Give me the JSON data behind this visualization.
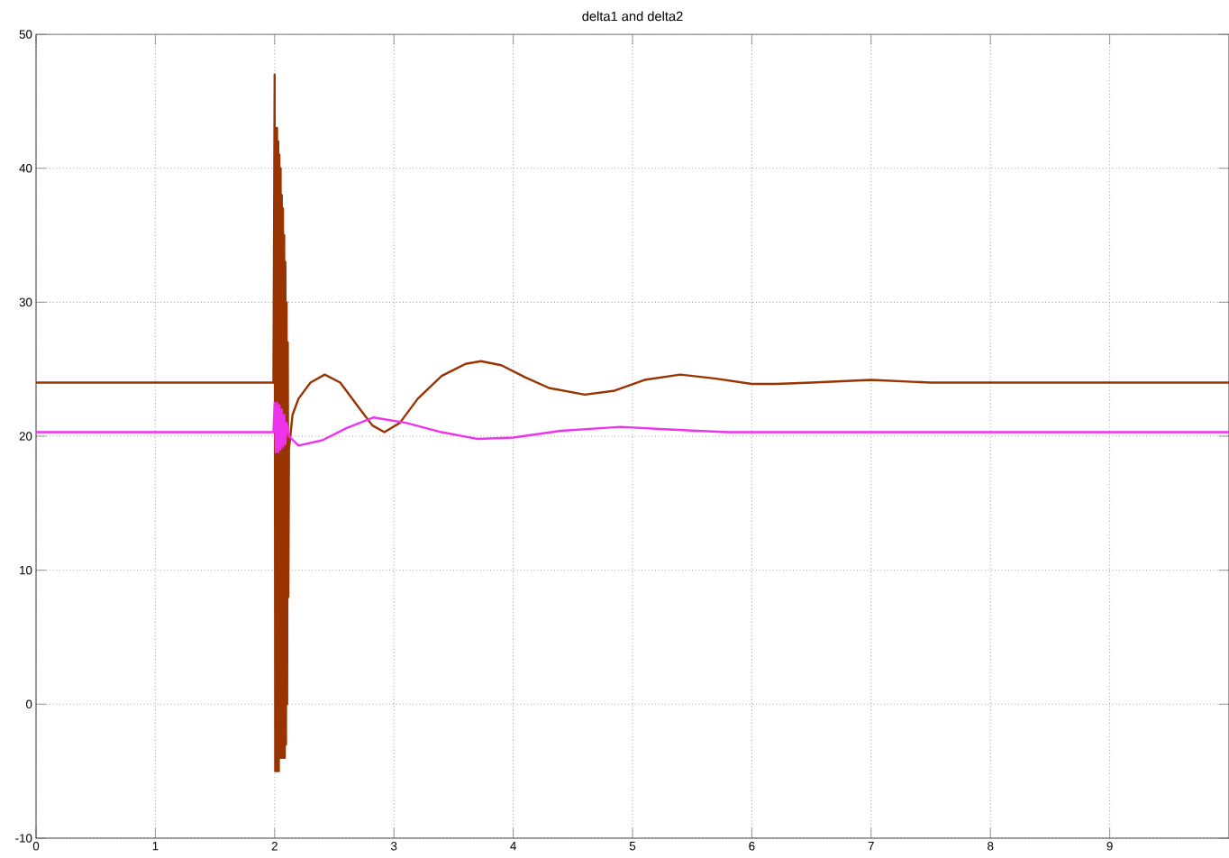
{
  "chart_data": {
    "type": "line",
    "title": "delta1 and delta2",
    "xlim": [
      0,
      10
    ],
    "ylim": [
      -10,
      50
    ],
    "xticks": [
      0,
      1,
      2,
      3,
      4,
      5,
      6,
      7,
      8,
      9
    ],
    "yticks": [
      -10,
      0,
      10,
      20,
      30,
      40,
      50
    ],
    "grid": true,
    "line_style": "solid",
    "marker": "none",
    "series": [
      {
        "color": "#993300",
        "x": [
          0,
          0.5,
          1,
          1.5,
          1.99,
          2.0,
          2.005,
          2.01,
          2.015,
          2.02,
          2.025,
          2.03,
          2.035,
          2.04,
          2.045,
          2.05,
          2.055,
          2.06,
          2.065,
          2.07,
          2.075,
          2.08,
          2.085,
          2.09,
          2.095,
          2.1,
          2.105,
          2.11,
          2.115,
          2.12,
          2.15,
          2.2,
          2.3,
          2.42,
          2.55,
          2.7,
          2.82,
          2.92,
          3.05,
          3.2,
          3.4,
          3.6,
          3.73,
          3.9,
          4.1,
          4.3,
          4.6,
          4.85,
          5.1,
          5.4,
          5.7,
          6.0,
          6.2,
          6.5,
          7.0,
          7.5,
          8.0,
          8.5,
          9.0,
          9.5,
          10
        ],
        "values": [
          24,
          24,
          24,
          24,
          24,
          47,
          -5,
          43,
          -5,
          43,
          -5,
          42,
          -5,
          41,
          -4,
          40,
          -4,
          38,
          -4,
          37,
          -4,
          35,
          -4,
          33,
          -3,
          30,
          0,
          27,
          8,
          19,
          21.6,
          22.8,
          24,
          24.6,
          24,
          22.2,
          20.8,
          20.3,
          21,
          22.8,
          24.5,
          25.4,
          25.6,
          25.3,
          24.4,
          23.6,
          23.1,
          23.4,
          24.2,
          24.6,
          24.3,
          23.9,
          23.9,
          24,
          24.2,
          24,
          24,
          24,
          24,
          24,
          24
        ]
      },
      {
        "color": "#ee33ee",
        "x": [
          0,
          0.5,
          1,
          1.5,
          1.99,
          2.0,
          2.01,
          2.02,
          2.03,
          2.04,
          2.05,
          2.06,
          2.07,
          2.08,
          2.09,
          2.1,
          2.12,
          2.2,
          2.4,
          2.6,
          2.83,
          3.1,
          3.4,
          3.7,
          4.0,
          4.4,
          4.9,
          5.3,
          5.8,
          6.5,
          7.5,
          8.5,
          9.5,
          10
        ],
        "values": [
          20.3,
          20.3,
          20.3,
          20.3,
          20.3,
          22.5,
          18.8,
          22.5,
          18.8,
          22.3,
          19,
          22,
          19.2,
          21.6,
          19.4,
          21,
          20,
          19.3,
          19.7,
          20.6,
          21.4,
          21,
          20.3,
          19.8,
          19.9,
          20.4,
          20.7,
          20.5,
          20.3,
          20.3,
          20.3,
          20.3,
          20.3,
          20.3
        ]
      }
    ]
  }
}
